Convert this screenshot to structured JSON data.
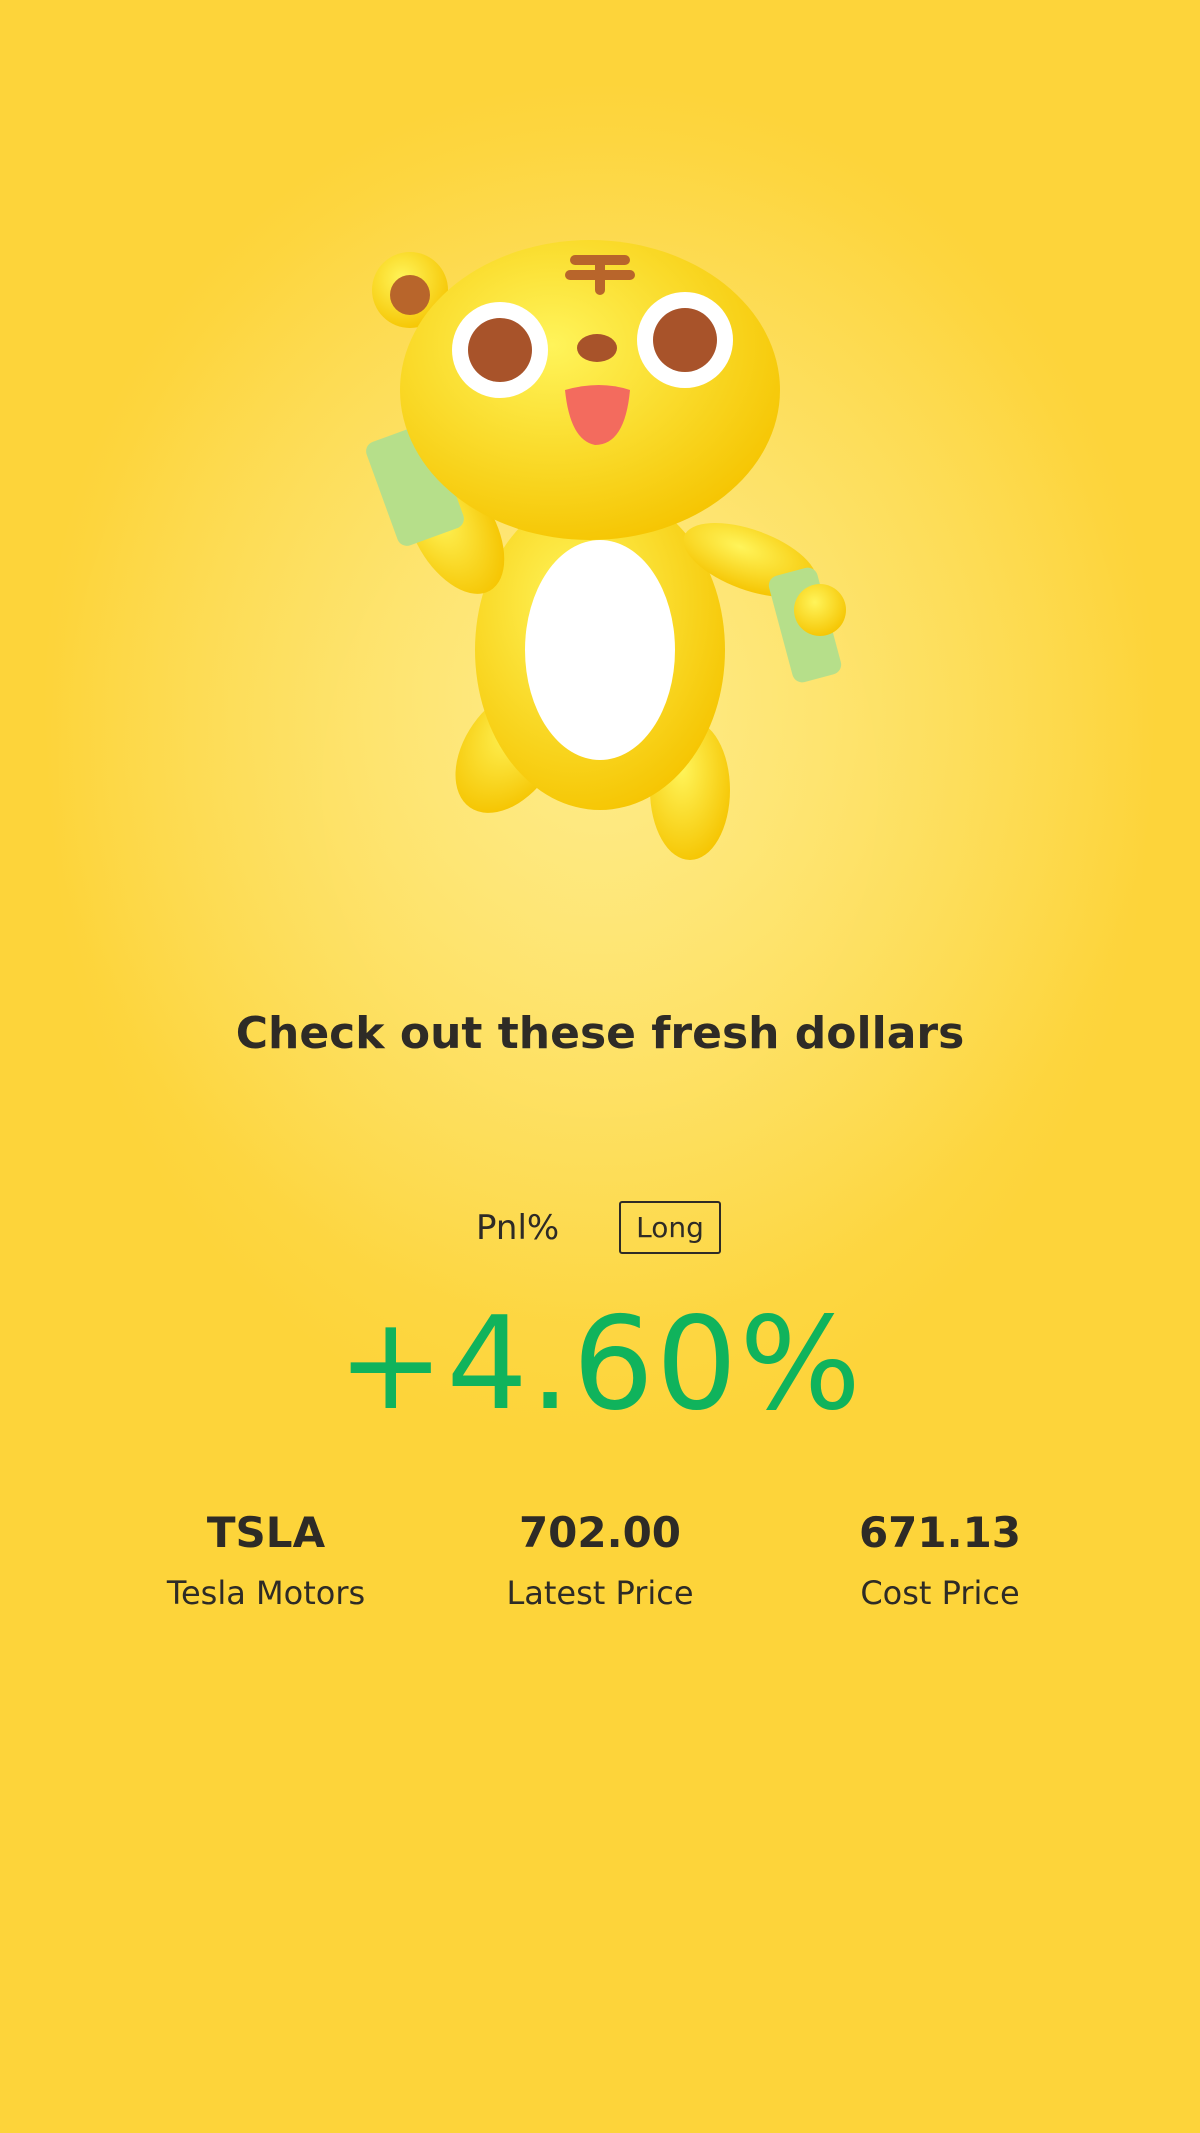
{
  "headline": "Check out these fresh dollars",
  "mascot": {
    "icon": "tiger-mascot-holding-cash"
  },
  "pnl": {
    "label": "Pnl%",
    "side": "Long",
    "value": "+4.60%",
    "color": "#10b35c"
  },
  "stats": [
    {
      "value": "TSLA",
      "label": "Tesla Motors"
    },
    {
      "value": "702.00",
      "label": "Latest Price"
    },
    {
      "value": "671.13",
      "label": "Cost Price"
    }
  ],
  "colors": {
    "background": "#fdd84a",
    "text": "#2e2b26"
  }
}
